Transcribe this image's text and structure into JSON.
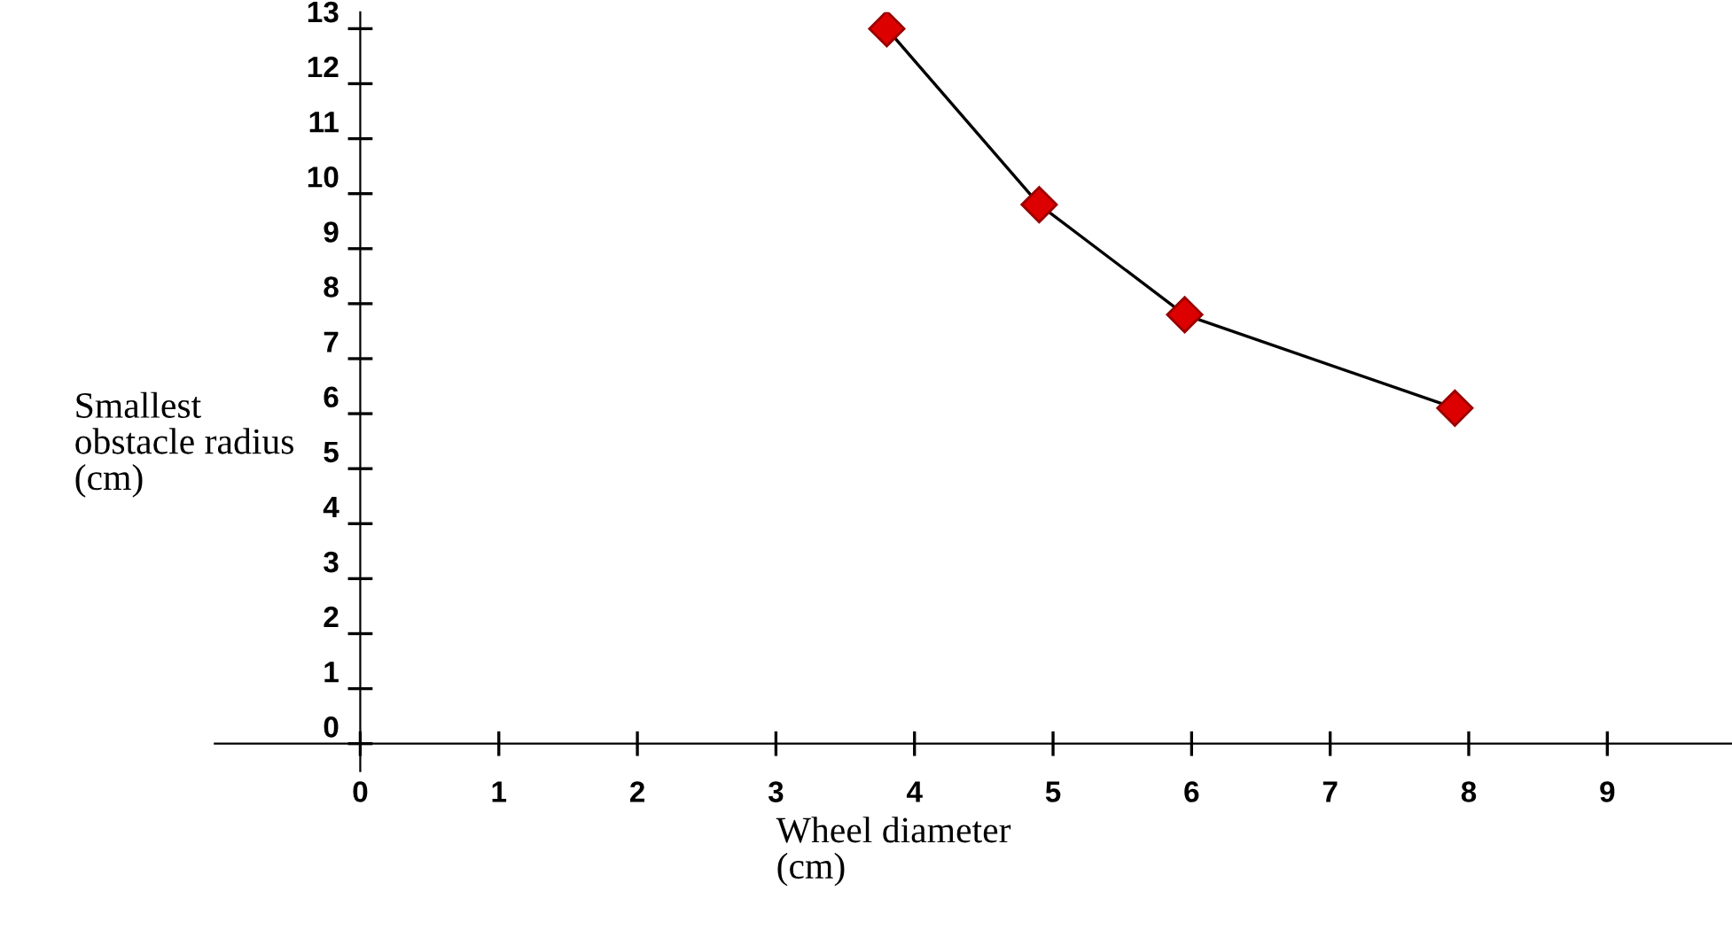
{
  "chart_data": {
    "type": "line",
    "xlabel": "Wheel diameter\n(cm)",
    "ylabel": "Smallest\nobstacle radius\n(cm)",
    "x": [
      3.8,
      4.9,
      5.95,
      7.9
    ],
    "series": [
      {
        "color": "#dd0000",
        "values": [
          13,
          9.8,
          7.8,
          6.1
        ]
      }
    ],
    "marker": "diamond",
    "line_style": "solid",
    "xlim": [
      -1.05,
      9.9
    ],
    "xticks": [
      0,
      1,
      2,
      3,
      4,
      5,
      6,
      7,
      8,
      9
    ],
    "ylim": [
      -0.5,
      13.3
    ],
    "yticks": [
      0,
      1,
      2,
      3,
      4,
      5,
      6,
      7,
      8,
      9,
      10,
      11,
      12,
      13
    ],
    "grid": false,
    "legend": false
  }
}
